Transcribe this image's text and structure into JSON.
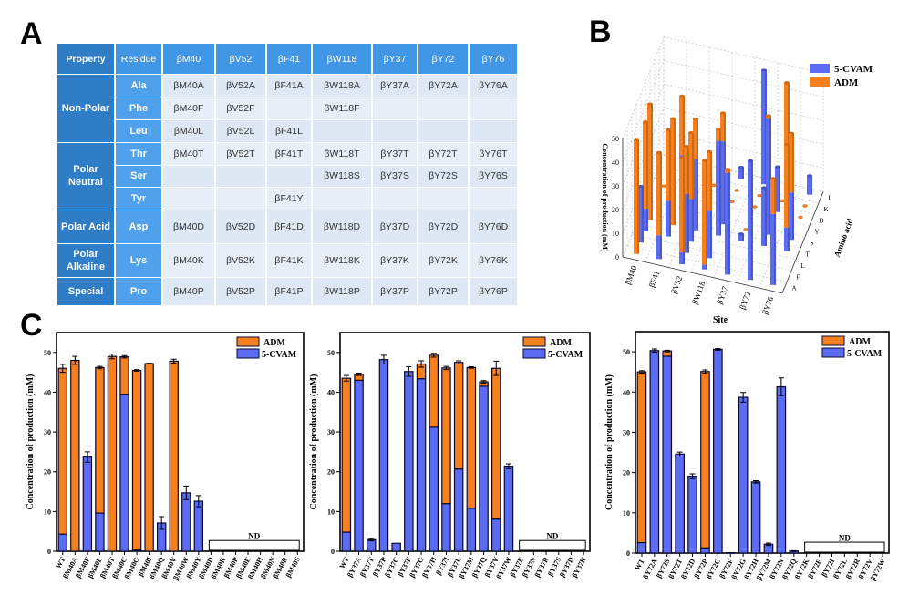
{
  "panels": {
    "a": "A",
    "b": "B",
    "c": "C"
  },
  "colors": {
    "adm": "#f7801e",
    "cvam": "#5b6cf2",
    "header": "#4296e6",
    "property": "#2f7cc7",
    "residue": "#4ea1ea",
    "cell": "#dde8f4"
  },
  "table": {
    "headers": [
      "Property",
      "Residue",
      "βM40",
      "βV52",
      "βF41",
      "βW118",
      "βY37",
      "βY72",
      "βY76"
    ],
    "groups": [
      {
        "property": "Non-Polar",
        "rows": [
          {
            "residue": "Ala",
            "cells": [
              "βM40A",
              "βV52A",
              "βF41A",
              "βW118A",
              "βY37A",
              "βY72A",
              "βY76A"
            ]
          },
          {
            "residue": "Phe",
            "cells": [
              "βM40F",
              "βV52F",
              "",
              "βW118F",
              "",
              "",
              ""
            ]
          },
          {
            "residue": "Leu",
            "cells": [
              "βM40L",
              "βV52L",
              "βF41L",
              "",
              "",
              "",
              ""
            ]
          }
        ]
      },
      {
        "property": "Polar Neutral",
        "rows": [
          {
            "residue": "Thr",
            "cells": [
              "βM40T",
              "βV52T",
              "βF41T",
              "βW118T",
              "βY37T",
              "βY72T",
              "βY76T"
            ]
          },
          {
            "residue": "Ser",
            "cells": [
              "",
              "",
              "",
              "βW118S",
              "βY37S",
              "βY72S",
              "βY76S"
            ]
          },
          {
            "residue": "Tyr",
            "cells": [
              "",
              "",
              "βF41Y",
              "",
              "",
              "",
              ""
            ]
          }
        ]
      },
      {
        "property": "Polar Acid",
        "rows": [
          {
            "residue": "Asp",
            "cells": [
              "βM40D",
              "βV52D",
              "βF41D",
              "βW118D",
              "βY37D",
              "βY72D",
              "βY76D"
            ]
          }
        ]
      },
      {
        "property": "Polar Alkaline",
        "rows": [
          {
            "residue": "Lys",
            "cells": [
              "βM40K",
              "βV52K",
              "βF41K",
              "βW118K",
              "βY37K",
              "βY72K",
              "βY76K"
            ]
          }
        ]
      },
      {
        "property": "Special",
        "rows": [
          {
            "residue": "Pro",
            "cells": [
              "βM40P",
              "βV52P",
              "βF41P",
              "βW118P",
              "βY37P",
              "βY72P",
              "βY76P"
            ]
          }
        ]
      }
    ]
  },
  "chart_data": [
    {
      "type": "bar3d",
      "xlabel": "Site",
      "ylabel": "Amino acid",
      "zlabel": "Concentration of production (mM)",
      "x_categories": [
        "βM40",
        "βF41",
        "βV52",
        "βW118",
        "βY37",
        "βY72",
        "βY76"
      ],
      "y_categories": [
        "A",
        "F",
        "L",
        "T",
        "S",
        "Y",
        "D",
        "K",
        "P"
      ],
      "zlim": [
        0,
        50
      ],
      "zticks": [
        "0",
        "10",
        "20",
        "30",
        "40",
        "50"
      ],
      "legend": "top-right",
      "series": [
        {
          "name": "5-CVAM",
          "values": [
            [
              0,
              23.7,
              9.6,
              0,
              null,
              null,
              0,
              0,
              0
            ],
            [
              10,
              null,
              15,
              0,
              null,
              20,
              0,
              0,
              0
            ],
            [
              5,
              25,
              18,
              30,
              null,
              null,
              0,
              0,
              0
            ],
            [
              2,
              20,
              null,
              40,
              35,
              null,
              0,
              0,
              5
            ],
            [
              43,
              null,
              null,
              2.9,
              0,
              null,
              0,
              0,
              48.2
            ],
            [
              50.3,
              null,
              null,
              24.6,
              48.9,
              null,
              19.1,
              0,
              1.3
            ],
            [
              30,
              null,
              null,
              10,
              20,
              null,
              0,
              0,
              8
            ]
          ]
        },
        {
          "name": "ADM",
          "values": [
            [
              48,
              0,
              36.6,
              49,
              null,
              null,
              0,
              0,
              0
            ],
            [
              35,
              null,
              30,
              45,
              null,
              25,
              0,
              0,
              0
            ],
            [
              40,
              20,
              28,
              17,
              null,
              null,
              0,
              0,
              0
            ],
            [
              44,
              25,
              null,
              5,
              12,
              null,
              0,
              0,
              0
            ],
            [
              1.5,
              null,
              null,
              0,
              0,
              null,
              0,
              0,
              0
            ],
            [
              0,
              null,
              null,
              0,
              1.3,
              null,
              0,
              0,
              43.8
            ],
            [
              15,
              null,
              null,
              35,
              25,
              null,
              0,
              0,
              0
            ]
          ]
        }
      ]
    },
    {
      "type": "bar",
      "stacked": true,
      "ylabel": "Concentration of production (mM)",
      "ylim": [
        0,
        55
      ],
      "yticks": [
        "0",
        "10",
        "20",
        "30",
        "40",
        "50"
      ],
      "legend": "top-right",
      "categories": [
        "WT",
        "βM40A",
        "βM40F",
        "βM40L",
        "βM40T",
        "βM40C",
        "βM40G",
        "βM40I",
        "βM40Q",
        "βM40V",
        "βM40W",
        "βM40Y",
        "βM40D",
        "βM40K",
        "βM40P",
        "βM40E",
        "βM40H",
        "βM40N",
        "βM40R",
        "βM40S"
      ],
      "series": [
        {
          "name": "5-CVAM",
          "values": [
            4.3,
            0,
            23.7,
            9.6,
            0,
            39.5,
            0.3,
            0,
            7.1,
            0,
            14.7,
            12.6,
            0,
            0,
            0,
            0,
            0,
            0,
            0,
            0
          ]
        },
        {
          "name": "ADM",
          "values": [
            41.7,
            48,
            0,
            36.6,
            49,
            9.4,
            45.2,
            47.2,
            0,
            47.8,
            0,
            0,
            0,
            0,
            0,
            0,
            0,
            0,
            0,
            0
          ]
        }
      ],
      "errors": [
        1.0,
        1.0,
        1.3,
        0.3,
        0.6,
        0.3,
        0.2,
        0.1,
        1.6,
        0.5,
        1.7,
        1.4,
        0,
        0,
        0,
        0,
        0,
        0,
        0,
        0
      ],
      "annotation": {
        "text": "ND",
        "from": "βM40D",
        "to": "βM40S"
      }
    },
    {
      "type": "bar",
      "stacked": true,
      "ylabel": "Concentration of production (mM)",
      "ylim": [
        0,
        55
      ],
      "yticks": [
        "0",
        "10",
        "20",
        "30",
        "40",
        "50"
      ],
      "legend": "top-right",
      "categories": [
        "WT",
        "βY37A",
        "βY37T",
        "βY37P",
        "βY37C",
        "βY37F",
        "βY37G",
        "βY37H",
        "βY37I",
        "βY37L",
        "βY37M",
        "βY37Q",
        "βY37V",
        "βY37W",
        "βY37E",
        "βY37N",
        "βY37R",
        "βY37S",
        "βY37D",
        "βY37K"
      ],
      "series": [
        {
          "name": "5-CVAM",
          "values": [
            4.8,
            43.0,
            2.9,
            48.2,
            2.0,
            45.2,
            43.4,
            31.2,
            12.0,
            20.7,
            10.8,
            41.5,
            8.1,
            21.4,
            0,
            0,
            0,
            0,
            0,
            0
          ]
        },
        {
          "name": "ADM",
          "values": [
            38.7,
            1.5,
            0,
            0,
            0,
            0,
            3.7,
            18.1,
            34.1,
            26.8,
            35.4,
            1.1,
            37.9,
            0,
            0,
            0,
            0,
            0,
            0,
            0
          ]
        }
      ],
      "errors": [
        0.7,
        0.3,
        0.3,
        1.1,
        0,
        1.2,
        0.8,
        0.5,
        0.4,
        0.4,
        0.2,
        0.3,
        1.8,
        0.6,
        0,
        0,
        0,
        0,
        0,
        0
      ],
      "annotation": {
        "text": "ND",
        "from": "βY37E",
        "to": "βY37K"
      }
    },
    {
      "type": "bar",
      "stacked": true,
      "ylabel": "Concentration of production (mM)",
      "ylim": [
        0,
        55
      ],
      "yticks": [
        "0",
        "10",
        "20",
        "30",
        "40",
        "50"
      ],
      "legend": "top-right",
      "categories": [
        "WT",
        "βY72A",
        "βY72S",
        "βY72T",
        "βY72D",
        "βY72P",
        "βY72C",
        "βY72F",
        "βY72G",
        "βY72H",
        "βY72M",
        "βY72N",
        "βY72Q",
        "βY72K",
        "βY72E",
        "βY72I",
        "βY72L",
        "βY72R",
        "βY72V",
        "βY72W"
      ],
      "series": [
        {
          "name": "5-CVAM",
          "values": [
            2.6,
            50.3,
            48.9,
            24.6,
            19.1,
            1.3,
            50.6,
            0.1,
            38.7,
            17.7,
            2.2,
            41.3,
            0.5,
            0,
            0,
            0,
            0,
            0,
            0,
            0
          ]
        },
        {
          "name": "ADM",
          "values": [
            42.4,
            0,
            1.3,
            0,
            0,
            43.8,
            0,
            0,
            0,
            0,
            0,
            0,
            0,
            0,
            0,
            0,
            0,
            0,
            0,
            0
          ]
        }
      ],
      "errors": [
        0.3,
        0.4,
        0.2,
        0.5,
        0.6,
        0.4,
        0.2,
        0,
        1.2,
        0.3,
        0.3,
        2.2,
        0.1,
        0,
        0,
        0,
        0,
        0,
        0,
        0
      ],
      "annotation": {
        "text": "ND",
        "from": "βY72K",
        "to": "βY72W"
      }
    }
  ]
}
